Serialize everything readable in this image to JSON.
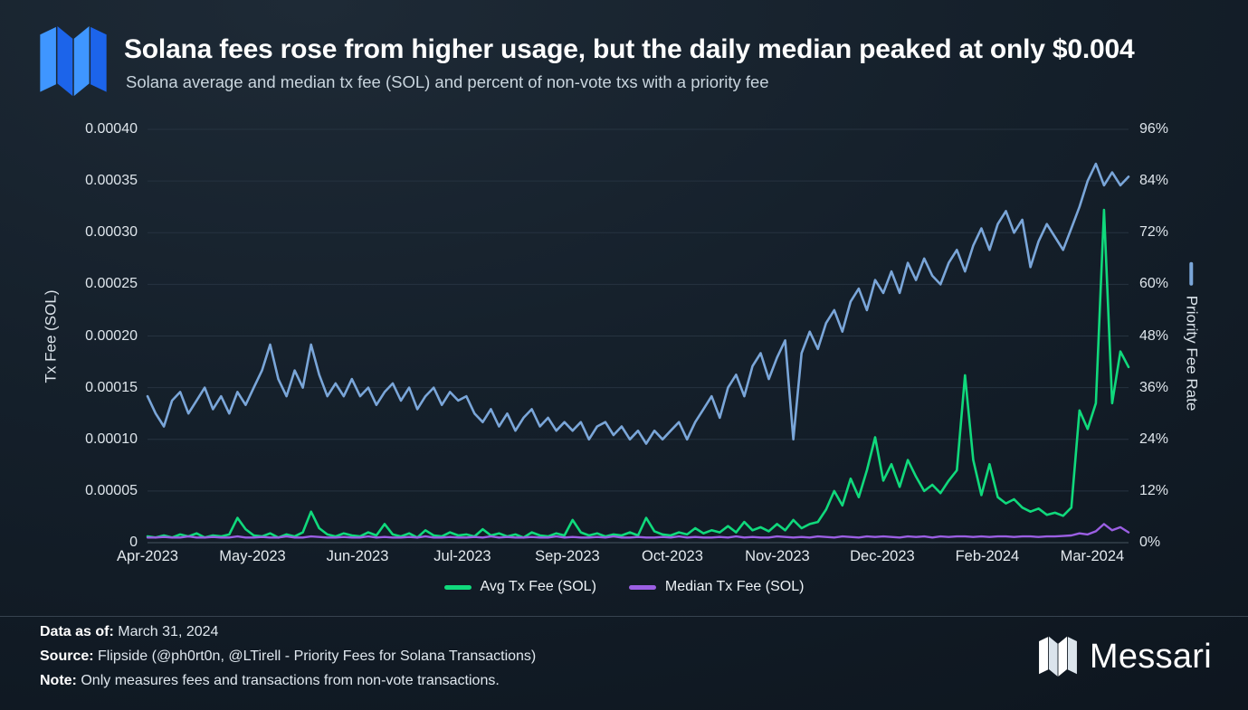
{
  "brand": {
    "name": "Messari",
    "brand_blue": "#2e7ef7"
  },
  "footer": {
    "data_as_of_label": "Data as of:",
    "data_as_of": "March 31, 2024",
    "source_label": "Source:",
    "source": "Flipside (@ph0rt0n, @LTirell - Priority Fees for Solana Transactions)",
    "note_label": "Note:",
    "note": "Only measures fees and transactions from non-vote transactions."
  },
  "chart_data": {
    "type": "line",
    "title": "Solana fees rose from higher usage, but the daily median peaked at only $0.004",
    "subtitle": "Solana average and median tx fee (SOL) and percent of non-vote txs with a priority fee",
    "grid": {
      "line_color": "#263340",
      "baseline_color": "#46545f",
      "vertical_gridlines": false
    },
    "x_axis": {
      "labels": [
        {
          "text": "Apr-2023",
          "pos": 0.0
        },
        {
          "text": "May-2023",
          "pos": 0.107
        },
        {
          "text": "Jun-2023",
          "pos": 0.214
        },
        {
          "text": "Jul-2023",
          "pos": 0.321
        },
        {
          "text": "Sep-2023",
          "pos": 0.428
        },
        {
          "text": "Oct-2023",
          "pos": 0.535
        },
        {
          "text": "Nov-2023",
          "pos": 0.642
        },
        {
          "text": "Dec-2023",
          "pos": 0.749
        },
        {
          "text": "Feb-2024",
          "pos": 0.856
        },
        {
          "text": "Mar-2024",
          "pos": 0.963
        }
      ]
    },
    "left_axis": {
      "title": "Tx Fee (SOL)",
      "min": 0,
      "max": 0.0004,
      "ticks": [
        {
          "value": 0.0004,
          "label": "0.00040"
        },
        {
          "value": 0.00035,
          "label": "0.00035"
        },
        {
          "value": 0.0003,
          "label": "0.00030"
        },
        {
          "value": 0.00025,
          "label": "0.00025"
        },
        {
          "value": 0.0002,
          "label": "0.00020"
        },
        {
          "value": 0.00015,
          "label": "0.00015"
        },
        {
          "value": 0.0001,
          "label": "0.00010"
        },
        {
          "value": 5e-05,
          "label": "0.00005"
        },
        {
          "value": 0,
          "label": "0"
        }
      ]
    },
    "right_axis": {
      "title": "Priority Fee Rate",
      "min": 0,
      "max": 96,
      "ticks": [
        {
          "value": 96,
          "label": "96%"
        },
        {
          "value": 84,
          "label": "84%"
        },
        {
          "value": 72,
          "label": "72%"
        },
        {
          "value": 60,
          "label": "60%"
        },
        {
          "value": 48,
          "label": "48%"
        },
        {
          "value": 36,
          "label": "36%"
        },
        {
          "value": 24,
          "label": "24%"
        },
        {
          "value": 12,
          "label": "12%"
        },
        {
          "value": 0,
          "label": "0%"
        }
      ]
    },
    "series": [
      {
        "id": "priority-fee-rate",
        "name": "Priority Fee Rate",
        "axis": "right",
        "color": "#7aa6d9",
        "width": 2.6,
        "values": [
          34,
          30,
          27,
          33,
          35,
          30,
          33,
          36,
          31,
          34,
          30,
          35,
          32,
          36,
          40,
          46,
          38,
          34,
          40,
          36,
          46,
          39,
          34,
          37,
          34,
          38,
          34,
          36,
          32,
          35,
          37,
          33,
          36,
          31,
          34,
          36,
          32,
          35,
          33,
          34,
          30,
          28,
          31,
          27,
          30,
          26,
          29,
          31,
          27,
          29,
          26,
          28,
          26,
          28,
          24,
          27,
          28,
          25,
          27,
          24,
          26,
          23,
          26,
          24,
          26,
          28,
          24,
          28,
          31,
          34,
          29,
          36,
          39,
          34,
          41,
          44,
          38,
          43,
          47,
          24,
          44,
          49,
          45,
          51,
          54,
          49,
          56,
          59,
          54,
          61,
          58,
          63,
          58,
          65,
          61,
          66,
          62,
          60,
          65,
          68,
          63,
          69,
          73,
          68,
          74,
          77,
          72,
          75,
          64,
          70,
          74,
          71,
          68,
          73,
          78,
          84,
          88,
          83,
          86,
          83,
          85
        ]
      },
      {
        "id": "avg-tx-fee",
        "name": "Avg Tx Fee (SOL)",
        "axis": "left",
        "color": "#10d97c",
        "width": 2.6,
        "values": [
          6e-06,
          5e-06,
          7e-06,
          5e-06,
          8e-06,
          6e-06,
          9e-06,
          5e-06,
          7e-06,
          6e-06,
          8e-06,
          2.4e-05,
          1.3e-05,
          7e-06,
          6e-06,
          9e-06,
          5e-06,
          8e-06,
          6e-06,
          1e-05,
          3e-05,
          1.4e-05,
          8e-06,
          6e-06,
          9e-06,
          7e-06,
          6e-06,
          1e-05,
          7e-06,
          1.8e-05,
          8e-06,
          6e-06,
          9e-06,
          5e-06,
          1.2e-05,
          7e-06,
          6e-06,
          1e-05,
          7e-06,
          8e-06,
          6e-06,
          1.3e-05,
          7e-06,
          9e-06,
          6e-06,
          8e-06,
          5e-06,
          1e-05,
          7e-06,
          6e-06,
          9e-06,
          7e-06,
          2.2e-05,
          1e-05,
          7e-06,
          9e-06,
          6e-06,
          8e-06,
          7e-06,
          1e-05,
          7e-06,
          2.4e-05,
          1.1e-05,
          8e-06,
          7e-06,
          1e-05,
          8e-06,
          1.4e-05,
          9e-06,
          1.2e-05,
          1e-05,
          1.6e-05,
          1e-05,
          2e-05,
          1.2e-05,
          1.5e-05,
          1.1e-05,
          1.8e-05,
          1.2e-05,
          2.2e-05,
          1.4e-05,
          1.8e-05,
          2e-05,
          3.2e-05,
          5e-05,
          3.6e-05,
          6.2e-05,
          4.4e-05,
          7e-05,
          0.000102,
          6e-05,
          7.6e-05,
          5.4e-05,
          8e-05,
          6.4e-05,
          5e-05,
          5.6e-05,
          4.8e-05,
          6e-05,
          7e-05,
          0.000162,
          8e-05,
          4.6e-05,
          7.6e-05,
          4.4e-05,
          3.8e-05,
          4.2e-05,
          3.4e-05,
          3e-05,
          3.3e-05,
          2.7e-05,
          2.9e-05,
          2.6e-05,
          3.4e-05,
          0.000128,
          0.00011,
          0.000135,
          0.000322,
          0.000135,
          0.000185,
          0.00017
        ]
      },
      {
        "id": "median-tx-fee",
        "name": "Median Tx Fee (SOL)",
        "axis": "left",
        "color": "#9b5fe3",
        "width": 2.4,
        "values": [
          5e-06,
          5e-06,
          5.5e-06,
          5e-06,
          5e-06,
          6e-06,
          5e-06,
          5e-06,
          5.5e-06,
          5e-06,
          5e-06,
          6e-06,
          5e-06,
          5e-06,
          5.5e-06,
          5e-06,
          5e-06,
          6e-06,
          5e-06,
          5e-06,
          6e-06,
          5.5e-06,
          5e-06,
          5e-06,
          5.5e-06,
          5e-06,
          5e-06,
          6e-06,
          5e-06,
          5.5e-06,
          5e-06,
          5e-06,
          5.5e-06,
          5e-06,
          6e-06,
          5e-06,
          5e-06,
          5.5e-06,
          5e-06,
          5e-06,
          5.5e-06,
          5e-06,
          6e-06,
          5e-06,
          5.5e-06,
          5e-06,
          5e-06,
          5.5e-06,
          5e-06,
          5e-06,
          6e-06,
          5e-06,
          5.5e-06,
          5e-06,
          5e-06,
          5.5e-06,
          5e-06,
          6e-06,
          5e-06,
          5e-06,
          5.5e-06,
          5e-06,
          5e-06,
          5.5e-06,
          5e-06,
          6e-06,
          5e-06,
          5.5e-06,
          5e-06,
          5e-06,
          5.5e-06,
          5e-06,
          6e-06,
          5e-06,
          5.5e-06,
          5e-06,
          5e-06,
          6e-06,
          5.5e-06,
          5e-06,
          5.5e-06,
          5e-06,
          6e-06,
          5.5e-06,
          5e-06,
          6e-06,
          5.5e-06,
          5e-06,
          6e-06,
          5.5e-06,
          6e-06,
          5.5e-06,
          5e-06,
          6e-06,
          5.5e-06,
          6e-06,
          5e-06,
          6e-06,
          5.5e-06,
          6e-06,
          6e-06,
          5.5e-06,
          6e-06,
          5.5e-06,
          6e-06,
          6e-06,
          5.5e-06,
          6e-06,
          6e-06,
          5.5e-06,
          6e-06,
          6e-06,
          6.5e-06,
          7e-06,
          9e-06,
          8e-06,
          1.1e-05,
          1.8e-05,
          1.2e-05,
          1.5e-05,
          1e-05
        ]
      }
    ],
    "legend": [
      {
        "label": "Avg Tx Fee (SOL)",
        "color": "#10d97c"
      },
      {
        "label": "Median Tx Fee (SOL)",
        "color": "#9b5fe3"
      }
    ]
  }
}
